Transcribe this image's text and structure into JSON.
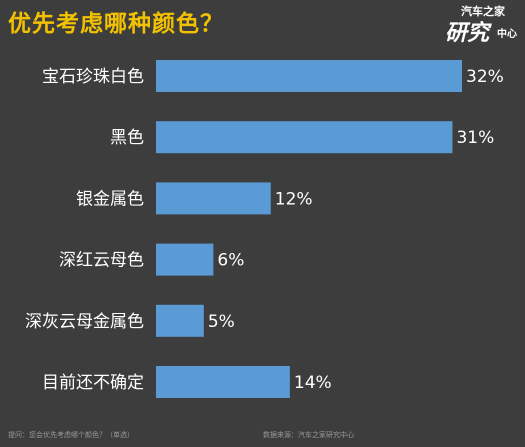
{
  "title": "优先考虑哪种颜色？",
  "logo": {
    "line1": "汽车之家",
    "line2": "研究",
    "line3": "中心"
  },
  "footer": {
    "question": "提问：您会优先考虑哪个颜色？（单选）",
    "source": "数据来源：汽车之家研究中心"
  },
  "colors": {
    "bar": "#5b9bd5",
    "title": "#f2c200",
    "background": "#3d3d3d"
  },
  "chart_data": {
    "type": "bar",
    "orientation": "horizontal",
    "categories": [
      "宝石珍珠白色",
      "黑色",
      "银金属色",
      "深红云母色",
      "深灰云母金属色",
      "目前还不确定"
    ],
    "values": [
      32,
      31,
      12,
      6,
      5,
      14
    ],
    "value_labels": [
      "32%",
      "31%",
      "12%",
      "6%",
      "5%",
      "14%"
    ],
    "xlim": [
      0,
      32
    ],
    "grid": false,
    "legend": "none"
  }
}
